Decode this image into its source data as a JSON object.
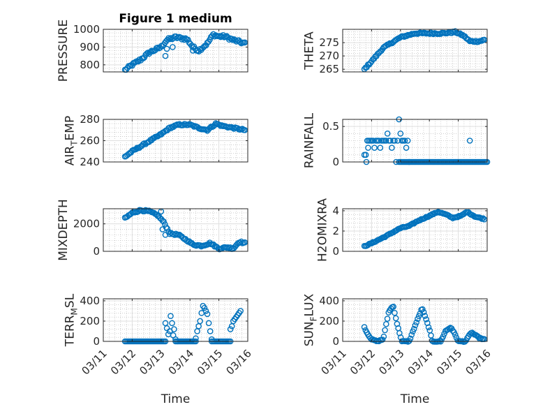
{
  "figure_title": "Figure 1 medium",
  "colors": {
    "marker": "#0072BD",
    "axis": "#262626",
    "grid": "#dfdfdf",
    "minor_grid": "#b0b0b0"
  },
  "chart_data": [
    {
      "type": "scatter",
      "id": "pressure",
      "title": "Figure 1 medium",
      "ylabel": "PRESSURE",
      "ylabel_sub": "",
      "ylabel_tail": "",
      "ylim": [
        760,
        1000
      ],
      "yticks": [
        800,
        900,
        1000
      ],
      "yticklabels": [
        "800",
        "900",
        "1000"
      ],
      "xlim": [
        0,
        5
      ],
      "xticks": [
        0,
        1,
        2,
        3,
        4,
        5
      ],
      "xticklabels": [
        "03/11",
        "03/12",
        "03/13",
        "03/14",
        "03/15",
        "03/16"
      ],
      "show_xticklabels": false,
      "xlabel": "",
      "knots": [
        [
          0.75,
          770
        ],
        [
          1.0,
          800
        ],
        [
          1.3,
          830
        ],
        [
          1.6,
          870
        ],
        [
          2.0,
          900
        ],
        [
          2.2,
          940
        ],
        [
          2.5,
          955
        ],
        [
          2.9,
          945
        ],
        [
          3.1,
          900
        ],
        [
          3.3,
          880
        ],
        [
          3.6,
          920
        ],
        [
          3.8,
          970
        ],
        [
          4.0,
          960
        ],
        [
          4.2,
          960
        ],
        [
          4.5,
          940
        ],
        [
          4.9,
          920
        ]
      ],
      "n": 100,
      "jitter": 8,
      "outliers": [
        [
          2.15,
          850
        ],
        [
          2.2,
          890
        ],
        [
          2.4,
          900
        ],
        [
          3.1,
          880
        ]
      ]
    },
    {
      "type": "scatter",
      "id": "theta",
      "title": "",
      "ylabel": "THETA",
      "ylabel_sub": "",
      "ylabel_tail": "",
      "ylim": [
        264,
        280
      ],
      "yticks": [
        265,
        270,
        275
      ],
      "yticklabels": [
        "265",
        "270",
        "275"
      ],
      "xlim": [
        0,
        5
      ],
      "xticks": [
        0,
        1,
        2,
        3,
        4,
        5
      ],
      "xticklabels": [
        "03/11",
        "03/12",
        "03/13",
        "03/14",
        "03/15",
        "03/16"
      ],
      "show_xticklabels": false,
      "xlabel": "",
      "knots": [
        [
          0.75,
          265
        ],
        [
          1.0,
          268
        ],
        [
          1.4,
          273
        ],
        [
          2.0,
          277
        ],
        [
          2.5,
          278.5
        ],
        [
          3.0,
          278.5
        ],
        [
          3.5,
          278.5
        ],
        [
          3.9,
          279
        ],
        [
          4.2,
          277.5
        ],
        [
          4.4,
          275.5
        ],
        [
          4.7,
          275.5
        ],
        [
          4.9,
          276
        ]
      ],
      "n": 100,
      "jitter": 0.3,
      "outliers": []
    },
    {
      "type": "scatter",
      "id": "air-temp",
      "title": "",
      "ylabel": "AIR",
      "ylabel_sub": "T",
      "ylabel_tail": "EMP",
      "ylim": [
        240,
        280
      ],
      "yticks": [
        240,
        260,
        280
      ],
      "yticklabels": [
        "240",
        "260",
        "280"
      ],
      "xlim": [
        0,
        5
      ],
      "xticks": [
        0,
        1,
        2,
        3,
        4,
        5
      ],
      "xticklabels": [
        "03/11",
        "03/12",
        "03/13",
        "03/14",
        "03/15",
        "03/16"
      ],
      "show_xticklabels": false,
      "xlabel": "",
      "knots": [
        [
          0.75,
          245
        ],
        [
          1.0,
          250
        ],
        [
          1.5,
          258
        ],
        [
          2.0,
          266
        ],
        [
          2.3,
          272
        ],
        [
          2.6,
          275
        ],
        [
          3.0,
          275
        ],
        [
          3.3,
          272
        ],
        [
          3.6,
          270
        ],
        [
          3.9,
          276
        ],
        [
          4.1,
          274
        ],
        [
          4.5,
          272
        ],
        [
          4.9,
          270
        ]
      ],
      "n": 100,
      "jitter": 0.8,
      "outliers": []
    },
    {
      "type": "scatter",
      "id": "rainfall",
      "title": "",
      "ylabel": "RAINFALL",
      "ylabel_sub": "",
      "ylabel_tail": "",
      "ylim": [
        0,
        0.6
      ],
      "yticks": [
        0,
        0.5
      ],
      "yticklabels": [
        "0",
        "0.5"
      ],
      "xlim": [
        0,
        5
      ],
      "xticks": [
        0,
        1,
        2,
        3,
        4,
        5
      ],
      "xticklabels": [
        "03/11",
        "03/12",
        "03/13",
        "03/14",
        "03/15",
        "03/16"
      ],
      "show_xticklabels": false,
      "xlabel": "",
      "points": [
        [
          0.75,
          0.1
        ],
        [
          0.8,
          0.1
        ],
        [
          0.82,
          0
        ],
        [
          0.85,
          0.3
        ],
        [
          0.88,
          0.2
        ],
        [
          0.9,
          0.3
        ],
        [
          0.95,
          0.3
        ],
        [
          1.0,
          0.3
        ],
        [
          1.05,
          0.3
        ],
        [
          1.1,
          0.2
        ],
        [
          1.15,
          0.3
        ],
        [
          1.2,
          0.3
        ],
        [
          1.25,
          0.3
        ],
        [
          1.3,
          0.2
        ],
        [
          1.35,
          0.3
        ],
        [
          1.4,
          0.3
        ],
        [
          1.45,
          0.3
        ],
        [
          1.5,
          0.3
        ],
        [
          1.55,
          0.4
        ],
        [
          1.6,
          0.3
        ],
        [
          1.65,
          0.3
        ],
        [
          1.7,
          0.2
        ],
        [
          1.75,
          0.3
        ],
        [
          1.8,
          0.3
        ],
        [
          1.85,
          0
        ],
        [
          1.9,
          0.3
        ],
        [
          1.95,
          0.6
        ],
        [
          2.0,
          0.4
        ],
        [
          2.05,
          0.3
        ],
        [
          2.1,
          0.3
        ],
        [
          2.15,
          0.3
        ],
        [
          2.2,
          0.2
        ],
        [
          2.25,
          0.3
        ],
        [
          2.3,
          0
        ],
        [
          4.4,
          0.3
        ]
      ],
      "baseline": {
        "x_start": 1.95,
        "x_end": 5.0,
        "y": 0,
        "n": 70
      }
    },
    {
      "type": "scatter",
      "id": "mixdepth",
      "title": "",
      "ylabel": "MIXDEPTH",
      "ylabel_sub": "",
      "ylabel_tail": "",
      "ylim": [
        0,
        3100
      ],
      "yticks": [
        0,
        2000
      ],
      "yticklabels": [
        "0",
        "2000"
      ],
      "xlim": [
        0,
        5
      ],
      "xticks": [
        0,
        1,
        2,
        3,
        4,
        5
      ],
      "xticklabels": [
        "03/11",
        "03/12",
        "03/13",
        "03/14",
        "03/15",
        "03/16"
      ],
      "show_xticklabels": false,
      "xlabel": "",
      "knots": [
        [
          0.75,
          2400
        ],
        [
          1.0,
          2800
        ],
        [
          1.3,
          3000
        ],
        [
          1.6,
          2900
        ],
        [
          1.9,
          2600
        ],
        [
          2.1,
          2100
        ],
        [
          2.3,
          1300
        ],
        [
          2.6,
          1200
        ],
        [
          2.9,
          800
        ],
        [
          3.1,
          500
        ],
        [
          3.4,
          400
        ],
        [
          3.7,
          600
        ],
        [
          4.0,
          200
        ],
        [
          4.3,
          300
        ],
        [
          4.5,
          200
        ],
        [
          4.7,
          700
        ],
        [
          4.9,
          600
        ]
      ],
      "n": 100,
      "jitter": 60,
      "outliers": [
        [
          2.05,
          1600
        ],
        [
          2.15,
          1200
        ],
        [
          2.0,
          2900
        ]
      ]
    },
    {
      "type": "scatter",
      "id": "h2omixra",
      "title": "",
      "ylabel": "H2OMIXRA",
      "ylabel_sub": "",
      "ylabel_tail": "",
      "ylim": [
        0,
        4.2
      ],
      "yticks": [
        0,
        2,
        4
      ],
      "yticklabels": [
        "0",
        "2",
        "4"
      ],
      "xlim": [
        0,
        5
      ],
      "xticks": [
        0,
        1,
        2,
        3,
        4,
        5
      ],
      "xticklabels": [
        "03/11",
        "03/12",
        "03/13",
        "03/14",
        "03/15",
        "03/16"
      ],
      "show_xticklabels": false,
      "xlabel": "",
      "knots": [
        [
          0.75,
          0.5
        ],
        [
          1.0,
          0.8
        ],
        [
          1.5,
          1.5
        ],
        [
          2.0,
          2.3
        ],
        [
          2.3,
          2.5
        ],
        [
          2.6,
          3.0
        ],
        [
          3.0,
          3.5
        ],
        [
          3.3,
          3.9
        ],
        [
          3.6,
          3.6
        ],
        [
          3.8,
          3.3
        ],
        [
          4.1,
          3.5
        ],
        [
          4.3,
          3.9
        ],
        [
          4.6,
          3.4
        ],
        [
          4.9,
          3.2
        ]
      ],
      "n": 100,
      "jitter": 0.05,
      "outliers": []
    },
    {
      "type": "scatter",
      "id": "terr-msl",
      "title": "",
      "ylabel": "TERR",
      "ylabel_sub": "M",
      "ylabel_tail": "SL",
      "ylim": [
        0,
        420
      ],
      "yticks": [
        0,
        200,
        400
      ],
      "yticklabels": [
        "0",
        "200",
        "400"
      ],
      "xlim": [
        0,
        5
      ],
      "xticks": [
        0,
        1,
        2,
        3,
        4,
        5
      ],
      "xticklabels": [
        "03/11",
        "03/12",
        "03/13",
        "03/14",
        "03/15",
        "03/16"
      ],
      "show_xticklabels": true,
      "xlabel": "Time",
      "points": [
        [
          2.15,
          180
        ],
        [
          2.2,
          130
        ],
        [
          2.25,
          70
        ],
        [
          2.3,
          100
        ],
        [
          2.33,
          250
        ],
        [
          2.38,
          180
        ],
        [
          2.42,
          60
        ],
        [
          2.45,
          120
        ],
        [
          2.5,
          20
        ],
        [
          3.2,
          30
        ],
        [
          3.25,
          100
        ],
        [
          3.3,
          150
        ],
        [
          3.35,
          200
        ],
        [
          3.4,
          280
        ],
        [
          3.45,
          350
        ],
        [
          3.5,
          330
        ],
        [
          3.55,
          300
        ],
        [
          3.6,
          270
        ],
        [
          3.65,
          180
        ],
        [
          3.7,
          100
        ],
        [
          3.75,
          20
        ],
        [
          4.4,
          120
        ],
        [
          4.45,
          150
        ],
        [
          4.5,
          200
        ],
        [
          4.55,
          220
        ],
        [
          4.6,
          240
        ],
        [
          4.65,
          260
        ],
        [
          4.7,
          280
        ],
        [
          4.75,
          300
        ]
      ],
      "baselines": [
        {
          "x_start": 0.75,
          "x_end": 2.15,
          "y": 0,
          "n": 30
        },
        {
          "x_start": 2.5,
          "x_end": 3.2,
          "y": 0,
          "n": 16
        },
        {
          "x_start": 3.75,
          "x_end": 4.4,
          "y": 0,
          "n": 14
        }
      ]
    },
    {
      "type": "scatter",
      "id": "sun-flux",
      "title": "",
      "ylabel": "SUN",
      "ylabel_sub": "F",
      "ylabel_tail": "LUX",
      "ylim": [
        0,
        420
      ],
      "yticks": [
        0,
        200,
        400
      ],
      "yticklabels": [
        "0",
        "200",
        "400"
      ],
      "xlim": [
        0,
        5
      ],
      "xticks": [
        0,
        1,
        2,
        3,
        4,
        5
      ],
      "xticklabels": [
        "03/11",
        "03/12",
        "03/13",
        "03/14",
        "03/15",
        "03/16"
      ],
      "show_xticklabels": true,
      "xlabel": "Time",
      "knots": [
        [
          0.75,
          140
        ],
        [
          0.85,
          80
        ],
        [
          1.0,
          20
        ],
        [
          1.2,
          0
        ],
        [
          1.4,
          20
        ],
        [
          1.6,
          300
        ],
        [
          1.75,
          350
        ],
        [
          1.9,
          150
        ],
        [
          2.05,
          0
        ],
        [
          2.3,
          0
        ],
        [
          2.5,
          150
        ],
        [
          2.75,
          330
        ],
        [
          3.0,
          120
        ],
        [
          3.1,
          0
        ],
        [
          3.4,
          0
        ],
        [
          3.55,
          100
        ],
        [
          3.75,
          140
        ],
        [
          3.9,
          60
        ],
        [
          4.0,
          0
        ],
        [
          4.25,
          0
        ],
        [
          4.45,
          90
        ],
        [
          4.6,
          60
        ],
        [
          4.75,
          30
        ],
        [
          4.9,
          20
        ]
      ],
      "n": 100,
      "jitter": 5,
      "outliers": []
    }
  ]
}
